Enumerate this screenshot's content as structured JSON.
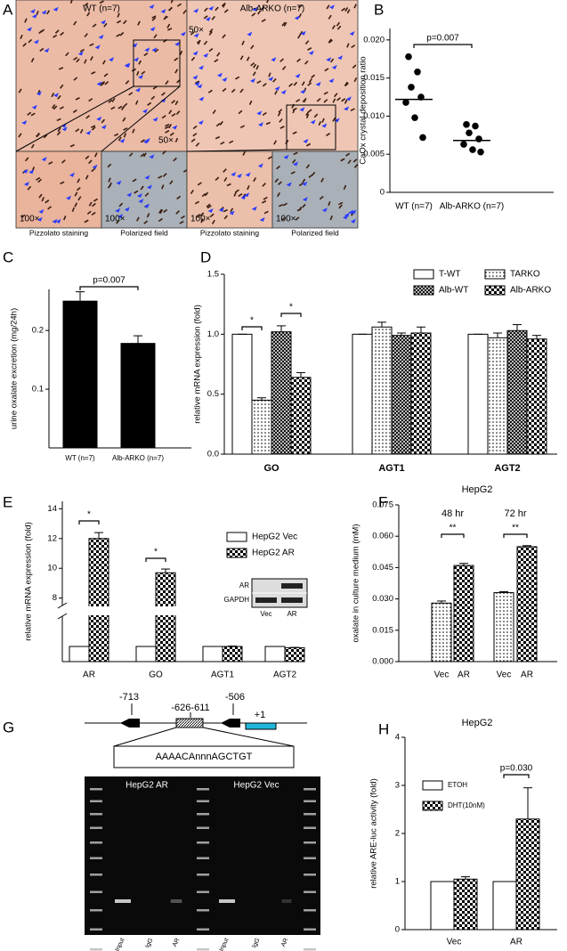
{
  "panel_a": {
    "letter": "A",
    "headers": [
      "WT (n=7)",
      "Alb-ARKO (n=7)"
    ],
    "magnifications": [
      "50×",
      "50×",
      "100×",
      "100×",
      "100×",
      "100×"
    ],
    "captions": [
      "Pizzolato staining",
      "Polarized field",
      "Pizzolato staining",
      "Polarized field"
    ]
  },
  "chart_data": [
    {
      "panel": "B",
      "type": "dotplot",
      "ylabel": "CaOx crystal deposition ratio",
      "categories": [
        "WT (n=7)",
        "Alb-ARKO (n=7)"
      ],
      "points": [
        [
          0.0178,
          0.0158,
          0.0138,
          0.0125,
          0.0118,
          0.0098,
          0.0072
        ],
        [
          0.0089,
          0.0087,
          0.0078,
          0.007,
          0.0063,
          0.0056,
          0.0053
        ]
      ],
      "medians": [
        0.0122,
        0.0068
      ],
      "ylim": [
        0,
        0.0215
      ],
      "yticks": [
        0,
        0.005,
        {
          "value": 0.01,
          "label": "0.010"
        },
        0.015,
        {
          "value": 0.02,
          "label": "0.020"
        }
      ],
      "annotations": [
        "p=0.007"
      ]
    },
    {
      "panel": "C",
      "type": "bar",
      "ylabel": "urine oxalate excretion (mg/24h)",
      "categories": [
        "WT (n=7)",
        "Alb-ARKO (n=7)"
      ],
      "values": [
        0.25,
        0.178
      ],
      "errors": [
        0.016,
        0.013
      ],
      "color": "#000000",
      "ylim": [
        0,
        0.27
      ],
      "yticks": [
        0.1,
        0.2
      ],
      "annotations": [
        "p=0.007"
      ]
    },
    {
      "panel": "D",
      "type": "bar",
      "ylabel": "relative mRNA expression (fold)",
      "categories": [
        "GO",
        "AGT1",
        "AGT2"
      ],
      "series": [
        {
          "name": "T-WT",
          "pattern": "none",
          "values": [
            1.0,
            1.0,
            1.0
          ],
          "errors": [
            0,
            0,
            0
          ]
        },
        {
          "name": "TARKO",
          "pattern": "dots",
          "values": [
            0.45,
            1.06,
            0.97
          ],
          "errors": [
            0.02,
            0.04,
            0.04
          ]
        },
        {
          "name": "Alb-WT",
          "pattern": "crosshatch",
          "values": [
            1.02,
            0.99,
            1.03
          ],
          "errors": [
            0.05,
            0.02,
            0.05
          ]
        },
        {
          "name": "Alb-ARKO",
          "pattern": "checker",
          "values": [
            0.64,
            1.01,
            0.96
          ],
          "errors": [
            0.04,
            0.05,
            0.03
          ]
        }
      ],
      "ylim": [
        0,
        1.5
      ],
      "yticks": [
        {
          "value": 0,
          "label": "0.0"
        },
        0.5,
        {
          "value": 1,
          "label": "1.0"
        },
        1.5
      ],
      "annotations": [
        "*",
        "*"
      ],
      "legend": "top-right"
    },
    {
      "panel": "E",
      "type": "bar",
      "ylabel": "relative mRNA expression (fold)",
      "categories": [
        "AR",
        "GO",
        "AGT1",
        "AGT2"
      ],
      "series": [
        {
          "name": "HepG2 Vec",
          "pattern": "none",
          "values": [
            1,
            1,
            1,
            1
          ],
          "errors": [
            0,
            0,
            0,
            0
          ]
        },
        {
          "name": "HepG2 AR",
          "pattern": "checker",
          "values": [
            12.0,
            9.7,
            1.0,
            0.92
          ],
          "errors": [
            0.4,
            0.25,
            0.03,
            0.02
          ]
        }
      ],
      "axis_break": true,
      "ylim": [
        0,
        3
      ],
      "ylim_upper": [
        7.5,
        14.5
      ],
      "yticks": [
        8,
        10,
        12,
        14
      ],
      "annotations": [
        "*",
        "*"
      ],
      "legend": "top-right",
      "inset": {
        "rows": [
          "AR",
          "GAPDH"
        ],
        "lanes": [
          "Vec",
          "AR"
        ]
      }
    },
    {
      "panel": "F",
      "type": "bar",
      "title": "HepG2",
      "ylabel": "oxalate in culture medium (mM)",
      "categories": [
        "Vec",
        "AR",
        "Vec",
        "AR"
      ],
      "group_labels": [
        "48 hr",
        "72 hr"
      ],
      "values": [
        0.028,
        0.046,
        0.033,
        0.055
      ],
      "errors": [
        0.001,
        0.001,
        0.0005,
        0.0005
      ],
      "patterns": [
        "dots",
        "checker",
        "dots",
        "checker"
      ],
      "ylim": [
        0,
        0.075
      ],
      "yticks": [
        {
          "value": 0,
          "label": "0.000"
        },
        0.015,
        {
          "value": 0.03,
          "label": "0.030"
        },
        0.045,
        {
          "value": 0.06,
          "label": "0.060"
        },
        0.075
      ],
      "annotations": [
        "**",
        "**"
      ]
    },
    {
      "panel": "H",
      "type": "bar",
      "title": "HepG2",
      "ylabel": "relative ARE-luc activity (fold)",
      "categories": [
        "Vec",
        "AR"
      ],
      "series": [
        {
          "name": "ETOH",
          "pattern": "none",
          "values": [
            1,
            1
          ],
          "errors": [
            0,
            0
          ]
        },
        {
          "name": "DHT(10nM)",
          "pattern": "checker",
          "values": [
            1.05,
            2.3
          ],
          "errors": [
            0.05,
            0.65
          ]
        }
      ],
      "ylim": [
        0,
        4
      ],
      "yticks": [
        0,
        1,
        2,
        3,
        4
      ],
      "annotations": [
        "p=0.030"
      ],
      "legend": "top-left"
    }
  ],
  "panel_g": {
    "letter": "G",
    "positions": [
      "-713",
      "-626-611",
      "-506",
      "+1"
    ],
    "motif": "AAAACAnnnAGCTGT",
    "gel_groups": [
      "HepG2 AR",
      "HepG2 Vec"
    ],
    "lanes": [
      "Input",
      "IgG",
      "AR",
      "Input",
      "IgG",
      "AR"
    ]
  }
}
